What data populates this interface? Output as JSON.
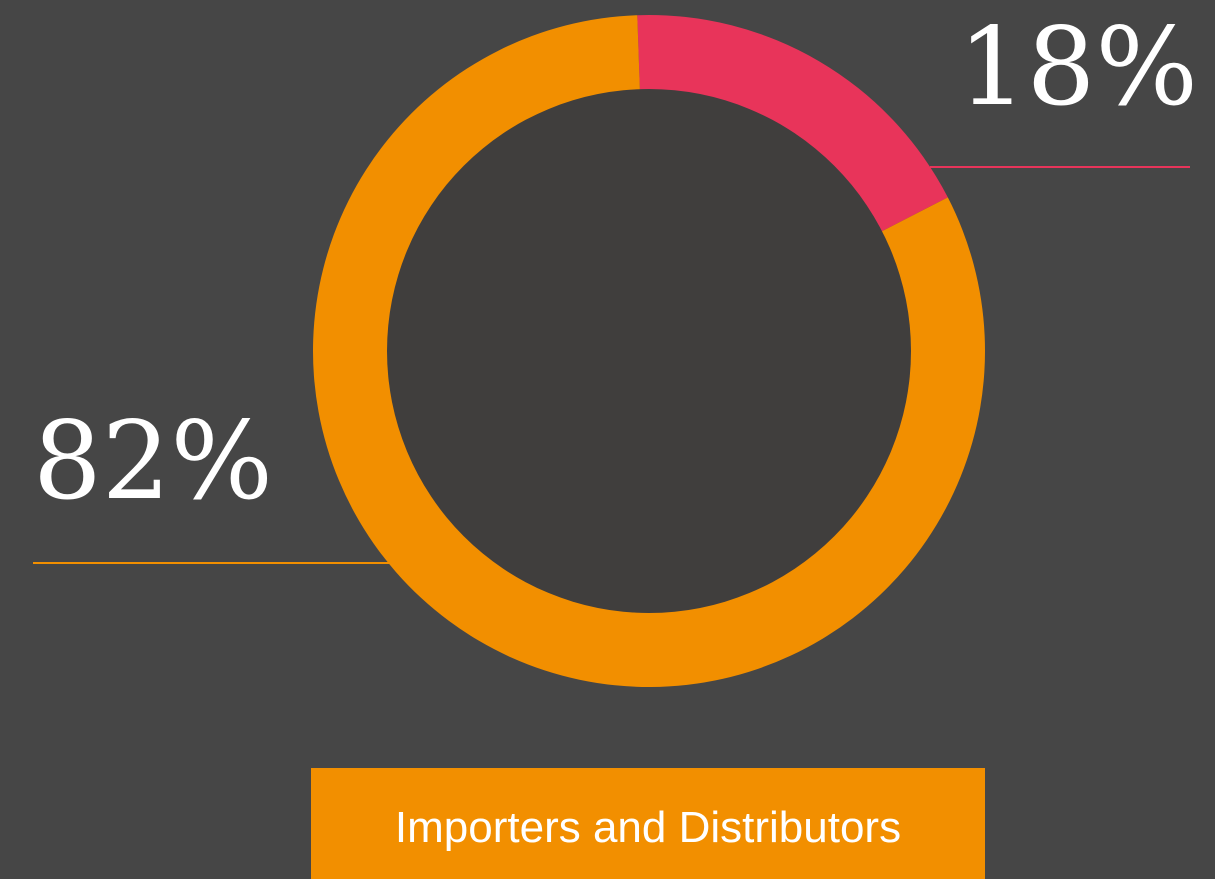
{
  "chart_data": {
    "type": "pie",
    "values": [
      18,
      82
    ],
    "value_labels": [
      "18%",
      "82%"
    ],
    "colors": [
      "#e8345a",
      "#f28f00"
    ]
  },
  "button": {
    "label": "Importers and Distributors"
  }
}
